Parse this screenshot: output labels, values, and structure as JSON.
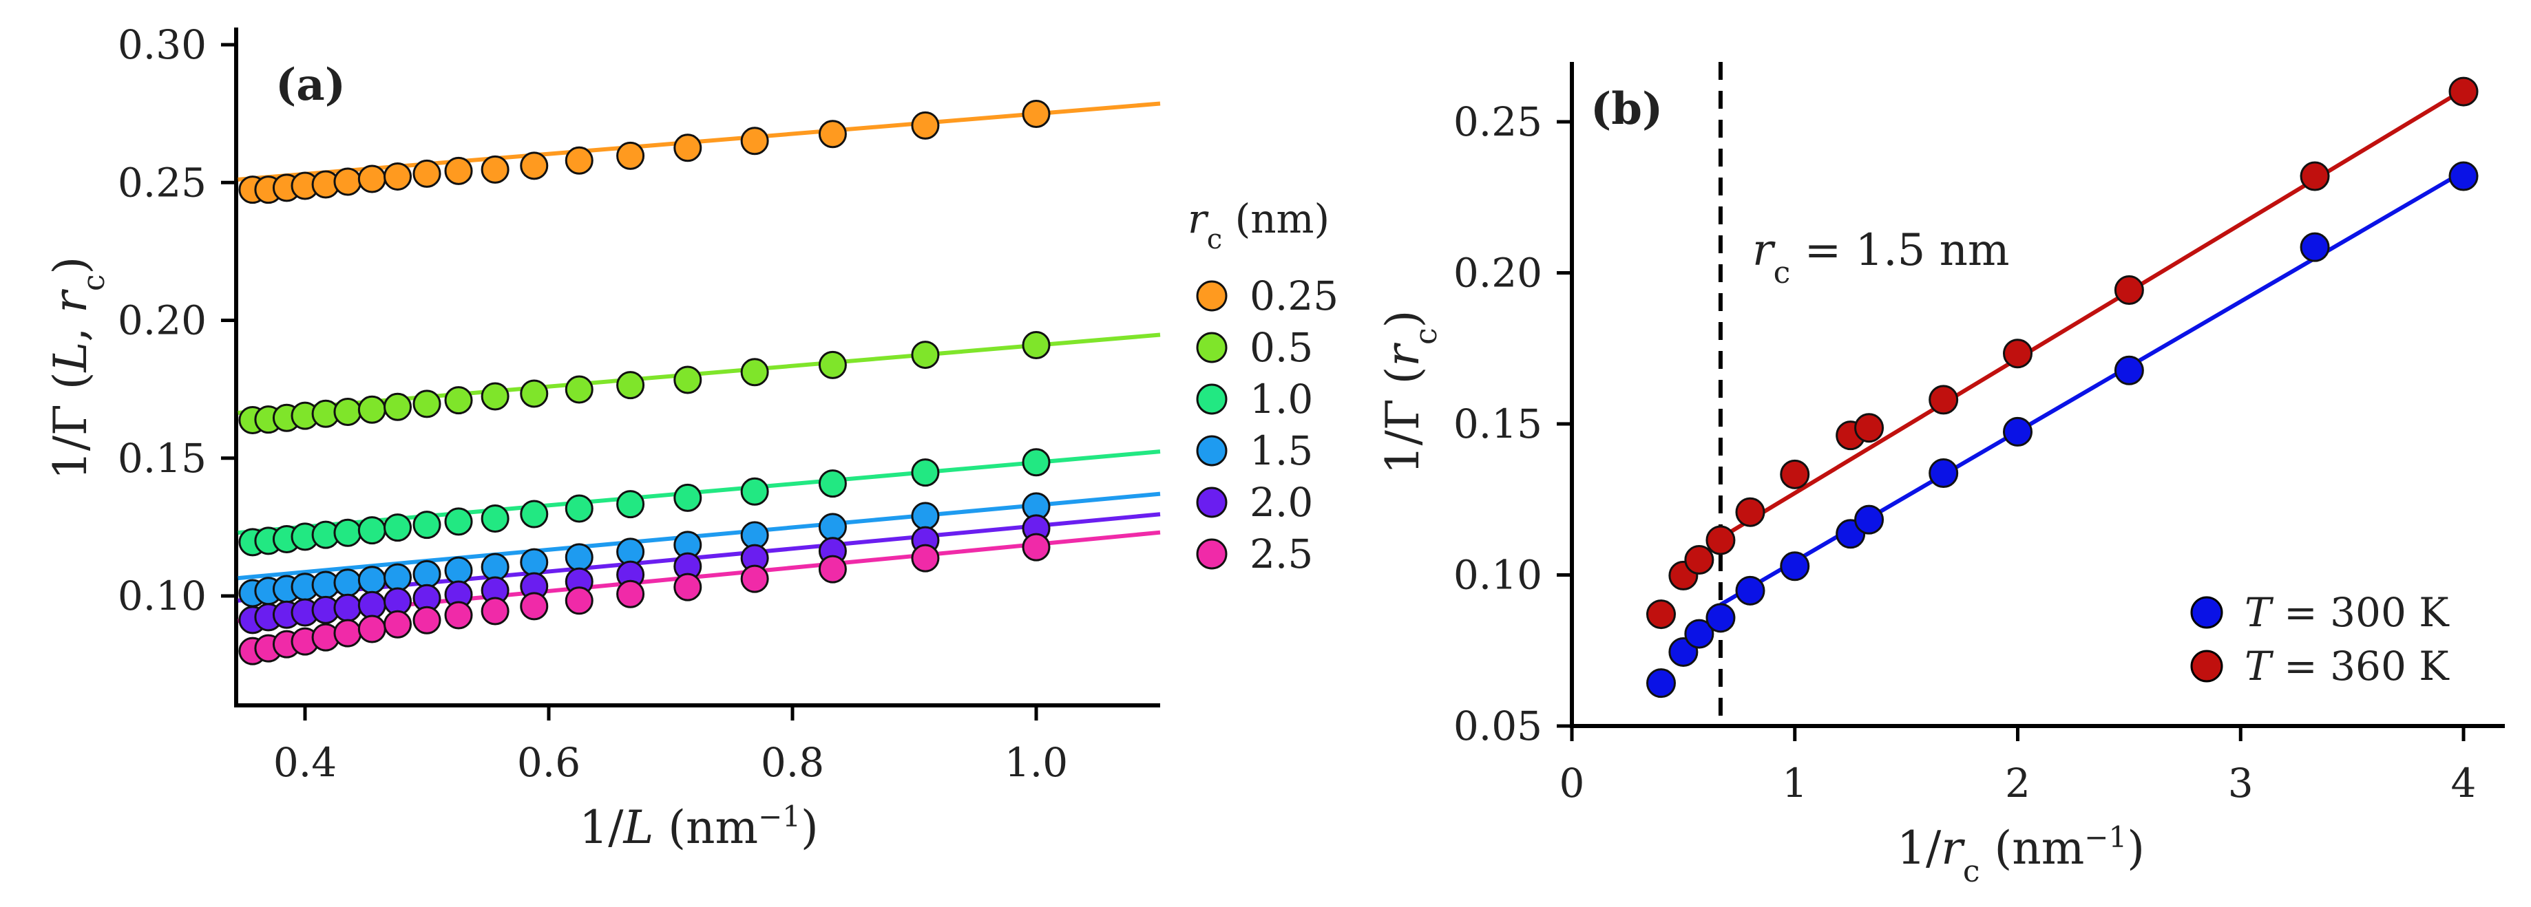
{
  "figure": {
    "panel_a_label": "(a)",
    "panel_b_label": "(b)"
  },
  "chart_data": [
    {
      "type": "scatter",
      "panel": "(a)",
      "xlabel": "1/L (nm⁻¹)",
      "ylabel": "1/Γ (L, r_c)",
      "xlim": [
        0.35,
        1.1
      ],
      "ylim": [
        0.06,
        0.3
      ],
      "xticks": [
        0.4,
        0.6,
        0.8,
        1.0
      ],
      "xtick_labels": [
        "0.4",
        "0.6",
        "0.8",
        "1.0"
      ],
      "yticks": [
        0.1,
        0.15,
        0.2,
        0.25,
        0.3
      ],
      "ytick_labels": [
        "0.10",
        "0.15",
        "0.20",
        "0.25",
        "0.30"
      ],
      "legend_title": "r_c (nm)",
      "legend_position": "right",
      "x": [
        0.357,
        0.37,
        0.385,
        0.4,
        0.417,
        0.435,
        0.455,
        0.476,
        0.5,
        0.526,
        0.556,
        0.588,
        0.625,
        0.667,
        0.714,
        0.769,
        0.833,
        0.909,
        1.0
      ],
      "series": [
        {
          "name": "0.25",
          "color": "#ff9a1f",
          "fit": {
            "intercept": 0.2385,
            "slope": 0.0365
          },
          "values": [
            0.2474,
            0.2474,
            0.2481,
            0.2488,
            0.2493,
            0.2503,
            0.2513,
            0.2522,
            0.2532,
            0.2542,
            0.2547,
            0.2561,
            0.258,
            0.2597,
            0.2626,
            0.2651,
            0.2676,
            0.2707,
            0.2749
          ]
        },
        {
          "name": "0.5",
          "color": "#7fe52a",
          "fit": {
            "intercept": 0.1535,
            "slope": 0.0375
          },
          "values": [
            0.1638,
            0.164,
            0.1646,
            0.1654,
            0.1661,
            0.1668,
            0.1676,
            0.1686,
            0.1697,
            0.171,
            0.1724,
            0.1734,
            0.1749,
            0.1765,
            0.1784,
            0.1812,
            0.1838,
            0.1875,
            0.191
          ]
        },
        {
          "name": "1.0",
          "color": "#22e882",
          "fit": {
            "intercept": 0.1095,
            "slope": 0.039
          },
          "values": [
            0.1195,
            0.12,
            0.1206,
            0.1215,
            0.1222,
            0.1229,
            0.1238,
            0.1248,
            0.1258,
            0.127,
            0.1281,
            0.1297,
            0.1317,
            0.1333,
            0.1356,
            0.1379,
            0.1408,
            0.1448,
            0.1485
          ]
        },
        {
          "name": "1.5",
          "color": "#1e9bf0",
          "fit": {
            "intercept": 0.0925,
            "slope": 0.0405
          },
          "values": [
            0.101,
            0.1018,
            0.1025,
            0.1033,
            0.104,
            0.1048,
            0.1058,
            0.1067,
            0.1079,
            0.1092,
            0.1105,
            0.1122,
            0.114,
            0.116,
            0.1185,
            0.122,
            0.125,
            0.129,
            0.1325
          ]
        },
        {
          "name": "2.0",
          "color": "#6a1ef0",
          "fit": {
            "intercept": 0.084,
            "slope": 0.0415
          },
          "values": [
            0.0913,
            0.0923,
            0.0932,
            0.094,
            0.0949,
            0.0957,
            0.0967,
            0.098,
            0.0992,
            0.1005,
            0.102,
            0.1035,
            0.1052,
            0.1077,
            0.1107,
            0.1137,
            0.1163,
            0.1202,
            0.1245
          ]
        },
        {
          "name": "2.5",
          "color": "#f02aa8",
          "fit": {
            "intercept": 0.0763,
            "slope": 0.0425
          },
          "values": [
            0.08,
            0.081,
            0.0825,
            0.0835,
            0.085,
            0.0865,
            0.088,
            0.0897,
            0.0912,
            0.093,
            0.0945,
            0.0963,
            0.0983,
            0.1007,
            0.1032,
            0.1062,
            0.1097,
            0.1137,
            0.1177
          ]
        }
      ]
    },
    {
      "type": "scatter",
      "panel": "(b)",
      "xlabel": "1/r_c (nm⁻¹)",
      "ylabel": "1/Γ (r_c)",
      "xlim": [
        0,
        4.2
      ],
      "ylim": [
        0.05,
        0.27
      ],
      "xticks": [
        0,
        1,
        2,
        3,
        4
      ],
      "xtick_labels": [
        "0",
        "1",
        "2",
        "3",
        "4"
      ],
      "yticks": [
        0.05,
        0.1,
        0.15,
        0.2,
        0.25
      ],
      "ytick_labels": [
        "0.05",
        "0.10",
        "0.15",
        "0.20",
        "0.25"
      ],
      "vline": {
        "x": 0.667,
        "label": "r_c = 1.5 nm"
      },
      "legend_position": "bottom-right",
      "x": [
        0.4,
        0.5,
        0.571,
        0.667,
        0.8,
        1.0,
        1.25,
        1.333,
        1.667,
        2.0,
        2.5,
        3.333,
        4.0
      ],
      "series": [
        {
          "name": "T = 300 K",
          "color": "#0a12e6",
          "fit": {
            "intercept": 0.0615,
            "slope": 0.043,
            "from": 0.667
          },
          "values": [
            0.0642,
            0.0745,
            0.0805,
            0.0858,
            0.0948,
            0.1029,
            0.1136,
            0.1183,
            0.1337,
            0.1474,
            0.1677,
            0.2085,
            0.232
          ]
        },
        {
          "name": "T = 360 K",
          "color": "#c0100e",
          "fit": {
            "intercept": 0.0826,
            "slope": 0.0445,
            "from": 0.667
          },
          "values": [
            0.087,
            0.0998,
            0.105,
            0.1115,
            0.1208,
            0.1333,
            0.1462,
            0.1487,
            0.158,
            0.1733,
            0.1943,
            0.232,
            0.26
          ]
        }
      ]
    }
  ]
}
